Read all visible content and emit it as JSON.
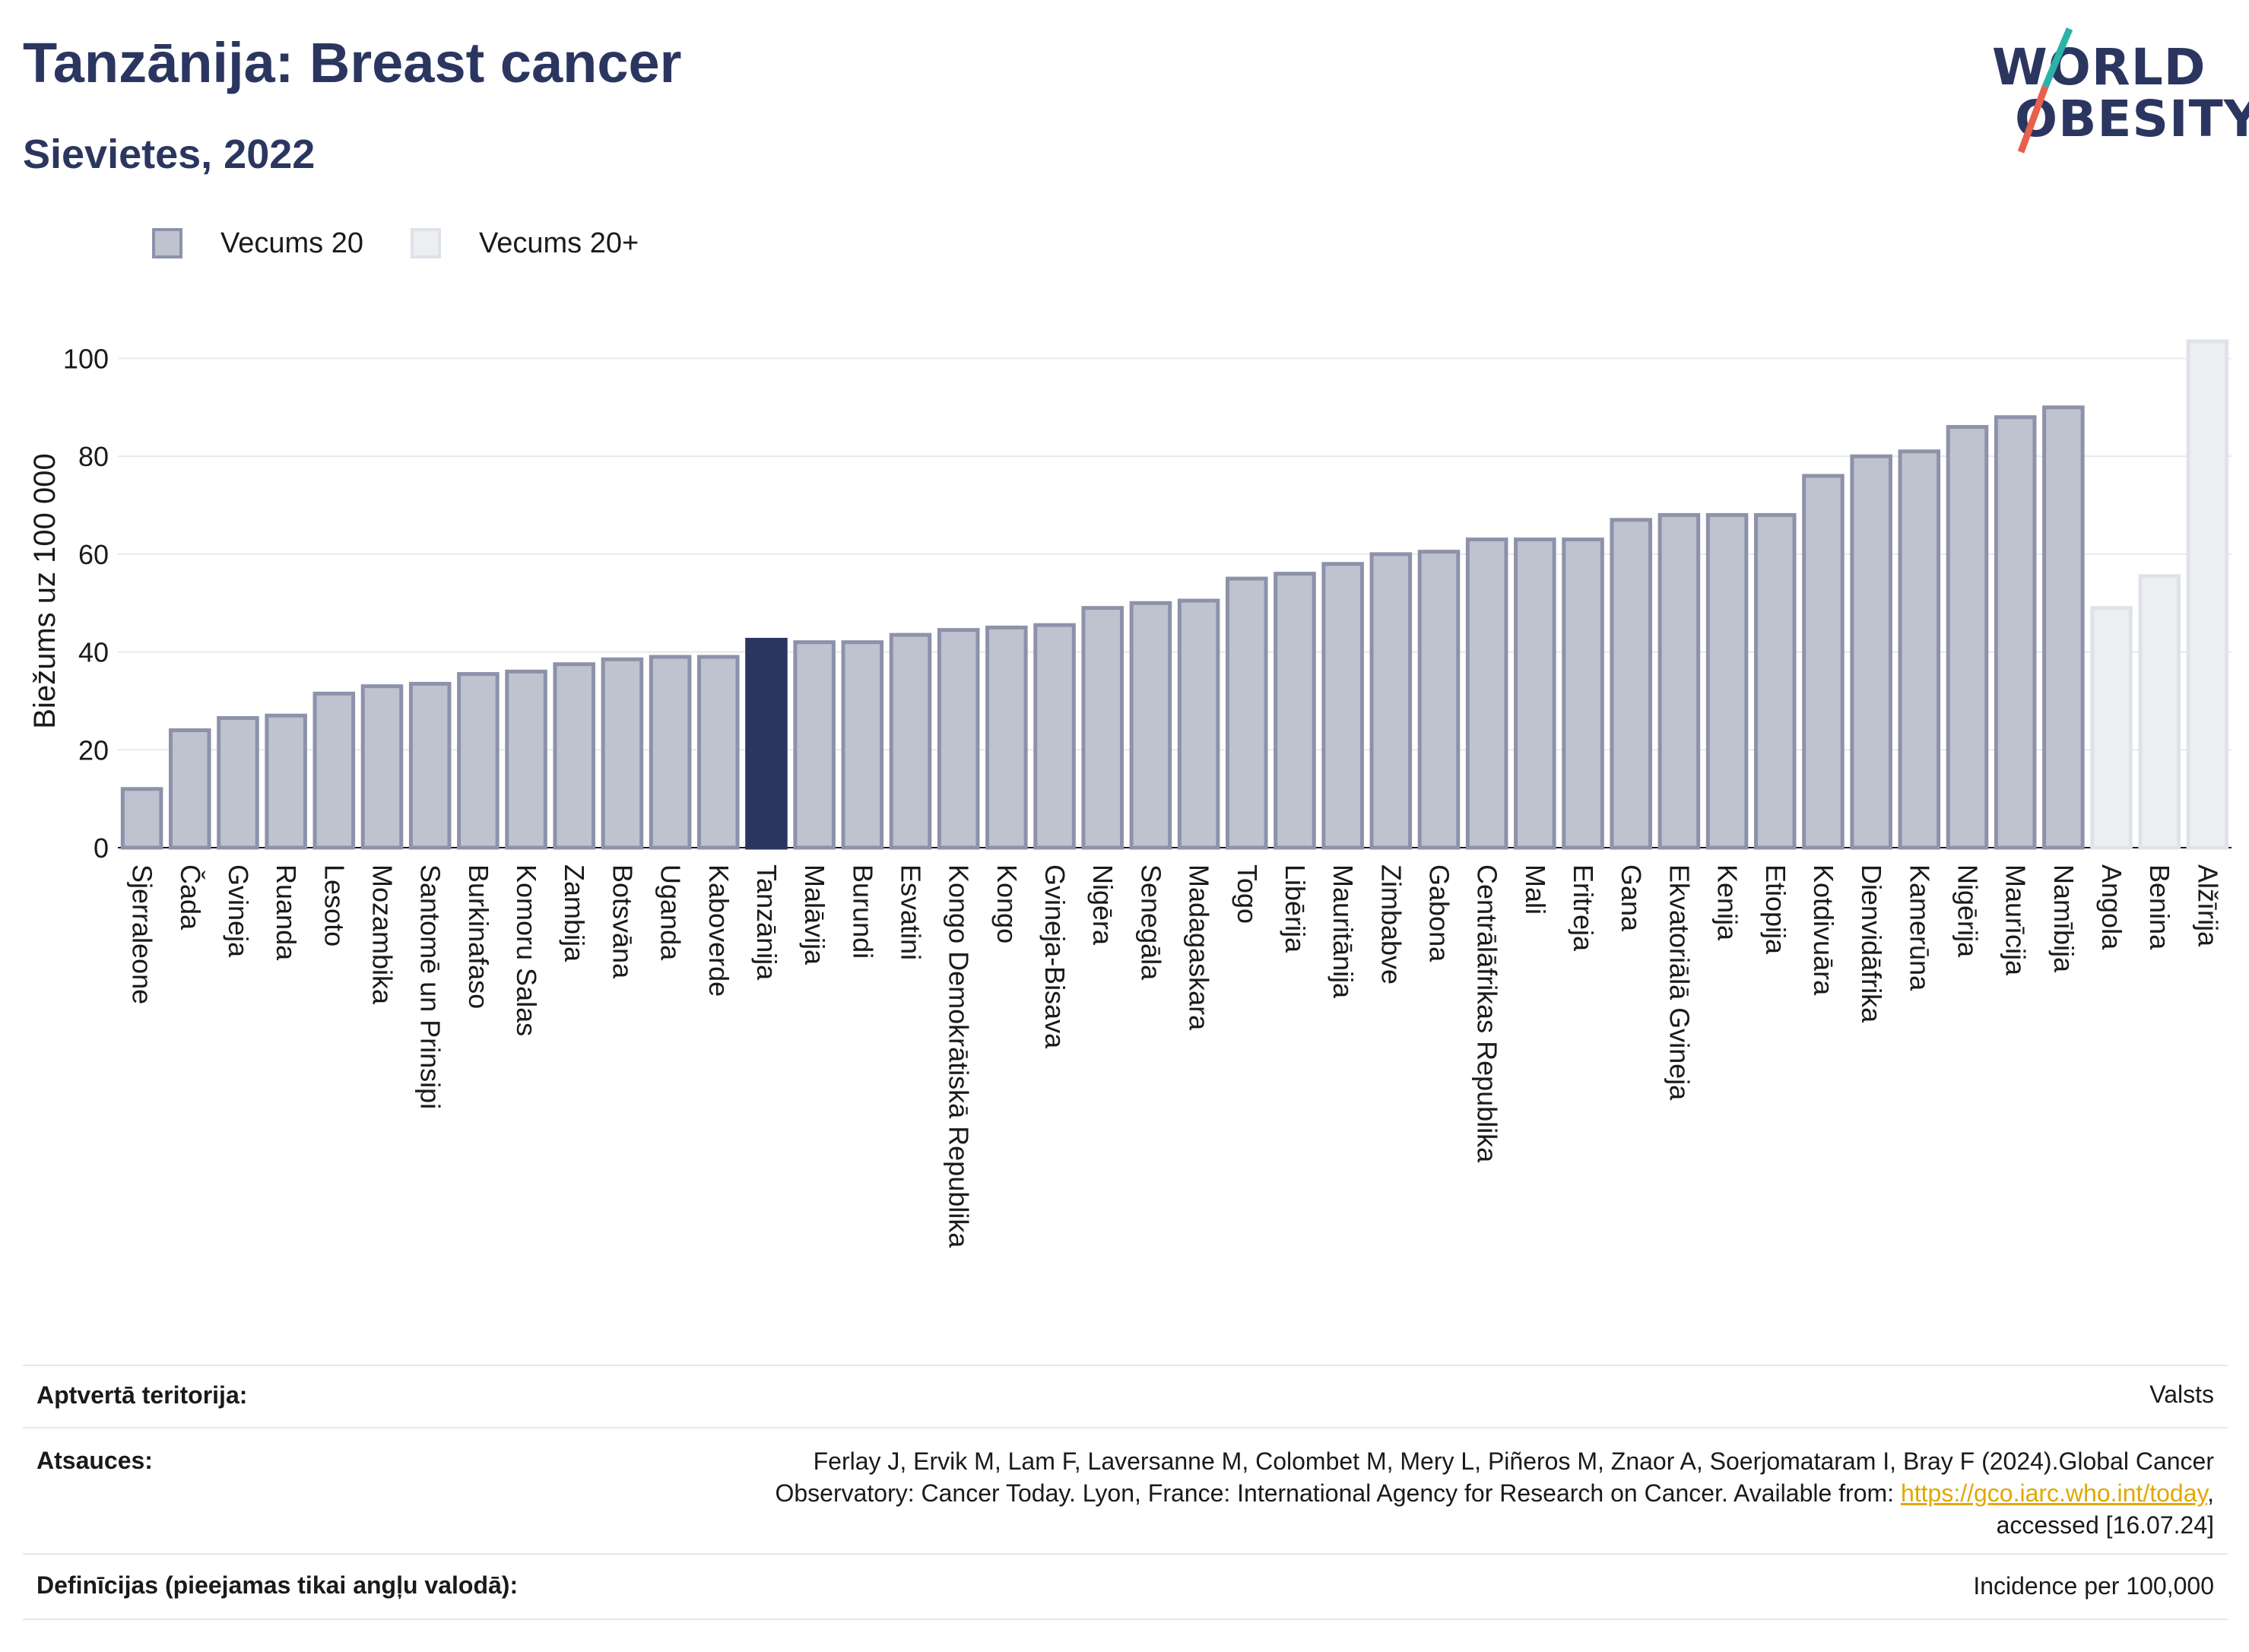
{
  "header": {
    "title": "Tanzānija: Breast cancer",
    "subtitle": "Sievietes, 2022"
  },
  "logo": {
    "line1": "WORLD",
    "line2": "OBESITY",
    "accent_teal": "#2ab3a6",
    "accent_red": "#e8604c"
  },
  "legend": {
    "items": [
      {
        "label": "Vecums 20",
        "color": "#bfc2cf",
        "border": "#8d92aa"
      },
      {
        "label": "Vecums 20+",
        "color": "#eceef2",
        "border": "#dfe2e8"
      }
    ]
  },
  "colors": {
    "highlight": "#2b3660",
    "text": "#1a1a1a",
    "grid": "#e8e9ec"
  },
  "chart_data": {
    "type": "bar",
    "title": "Tanzānija: Breast cancer",
    "subtitle": "Sievietes, 2022",
    "xlabel": "",
    "ylabel": "Biežums uz 100 000",
    "ylim": [
      0,
      108
    ],
    "yticks": [
      0,
      20,
      40,
      60,
      80,
      100
    ],
    "grid": true,
    "legend_position": "top-left",
    "highlight": "Tanzānija",
    "categories": [
      "Sjerraleone",
      "Čada",
      "Gvineja",
      "Ruanda",
      "Lesoto",
      "Mozambika",
      "Santomē un Prinsipi",
      "Burkinafaso",
      "Komoru Salas",
      "Zambija",
      "Botsvāna",
      "Uganda",
      "Kaboverde",
      "Tanzānija",
      "Malāvija",
      "Burundi",
      "Esvatini",
      "Kongo Demokrātiskā Republika",
      "Kongo",
      "Gvineja-Bisava",
      "Nigēra",
      "Senegāla",
      "Madagaskara",
      "Togo",
      "Libērija",
      "Mauritānija",
      "Zimbabve",
      "Gabona",
      "Centrālāfrikas Republika",
      "Mali",
      "Eritreja",
      "Gana",
      "Ekvatoriālā Gvineja",
      "Kenija",
      "Etiopija",
      "Kotdivuāra",
      "Dienvidāfrika",
      "Kamerūna",
      "Nigērija",
      "Maurīcija",
      "Namībija",
      "Angola",
      "Benina",
      "Alžīrija"
    ],
    "values": [
      12,
      24,
      26.5,
      27,
      31.5,
      33,
      33.5,
      35.5,
      36,
      37.5,
      38.5,
      39,
      39,
      42.5,
      42,
      42,
      43.5,
      44.5,
      45,
      45.5,
      49,
      50,
      50.5,
      55,
      56,
      58,
      60,
      60.5,
      63,
      63,
      63,
      67,
      68,
      68,
      68,
      76,
      80,
      81,
      86,
      88,
      90,
      49,
      55.5,
      103.5
    ],
    "series_group": [
      "Vecums 20",
      "Vecums 20",
      "Vecums 20",
      "Vecums 20",
      "Vecums 20",
      "Vecums 20",
      "Vecums 20",
      "Vecums 20",
      "Vecums 20",
      "Vecums 20",
      "Vecums 20",
      "Vecums 20",
      "Vecums 20",
      "Vecums 20",
      "Vecums 20",
      "Vecums 20",
      "Vecums 20",
      "Vecums 20",
      "Vecums 20",
      "Vecums 20",
      "Vecums 20",
      "Vecums 20",
      "Vecums 20",
      "Vecums 20",
      "Vecums 20",
      "Vecums 20",
      "Vecums 20",
      "Vecums 20",
      "Vecums 20",
      "Vecums 20",
      "Vecums 20",
      "Vecums 20",
      "Vecums 20",
      "Vecums 20",
      "Vecums 20",
      "Vecums 20",
      "Vecums 20",
      "Vecums 20",
      "Vecums 20",
      "Vecums 20",
      "Vecums 20",
      "Vecums 20+",
      "Vecums 20+",
      "Vecums 20+"
    ]
  },
  "footer": {
    "coverage_label": "Aptvertā teritorija:",
    "coverage_value": "Valsts",
    "refs_label": "Atsauces:",
    "refs_line1": "Ferlay J, Ervik M, Lam F, Laversanne M, Colombet M, Mery L, Piñeros M, Znaor A, Soerjomataram I, Bray F (2024).Global Cancer",
    "refs_line2_pre": "Observatory: Cancer Today. Lyon, France: International Agency for Research on Cancer. Available from: ",
    "refs_link": "https://gco.iarc.who.int/today",
    "refs_line2_post": ",",
    "refs_line3": "accessed [16.07.24]",
    "defs_label": "Definīcijas (pieejamas tikai angļu valodā):",
    "defs_value": "Incidence per 100,000"
  }
}
